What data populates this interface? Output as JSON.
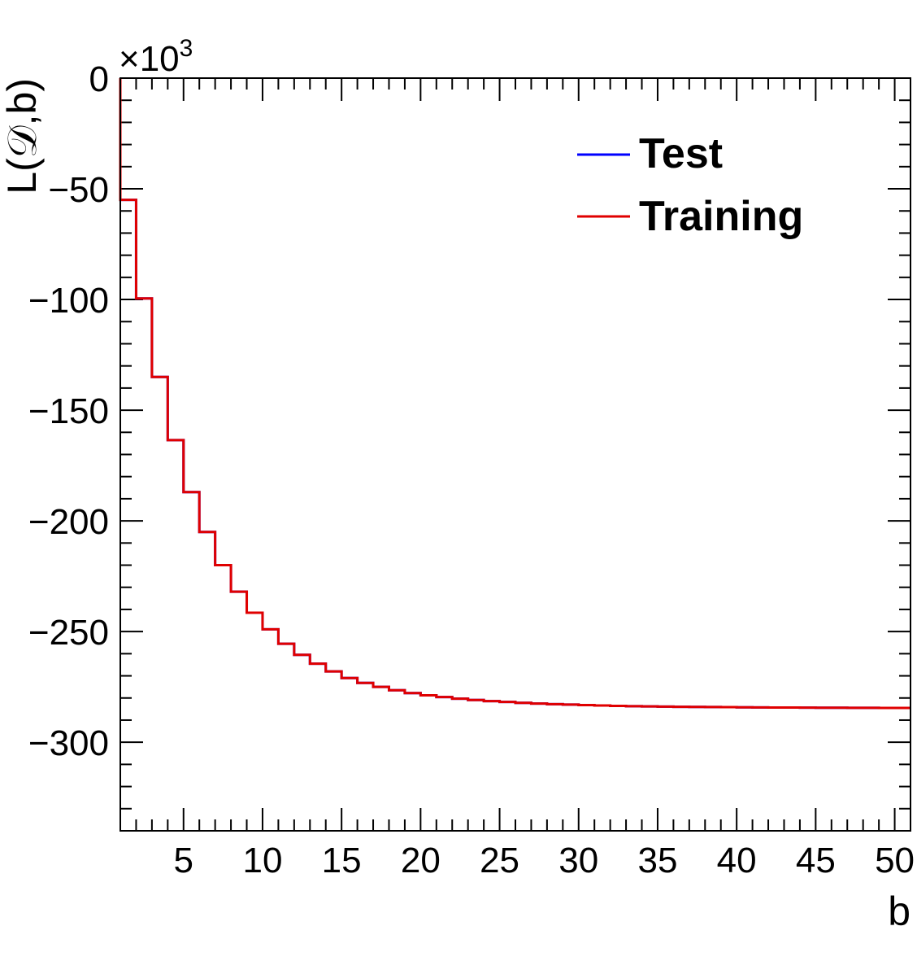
{
  "chart_data": {
    "type": "line",
    "step": true,
    "xlabel": "b",
    "ylabel": "L(𝒟,b)",
    "y_multiplier": "×10",
    "y_multiplier_exp": "3",
    "xlim": [
      1,
      51
    ],
    "ylim": [
      -340,
      0
    ],
    "x_ticks": [
      5,
      10,
      15,
      20,
      25,
      30,
      35,
      40,
      45,
      50
    ],
    "y_ticks": [
      0,
      -50,
      -100,
      -150,
      -200,
      -250,
      -300
    ],
    "y_tick_labels": [
      "0",
      "−50",
      "−100",
      "−150",
      "−200",
      "−250",
      "−300"
    ],
    "legend_position": "top-right",
    "x": [
      2,
      3,
      4,
      5,
      6,
      7,
      8,
      9,
      10,
      11,
      12,
      13,
      14,
      15,
      16,
      17,
      18,
      19,
      20,
      21,
      22,
      23,
      24,
      25,
      26,
      27,
      28,
      29,
      30,
      31,
      32,
      33,
      34,
      35,
      36,
      37,
      38,
      39,
      40,
      41,
      42,
      43,
      44,
      45,
      46,
      47,
      48,
      49,
      50
    ],
    "series": [
      {
        "name": "Test",
        "color": "#0000ff",
        "values": [
          -55,
          -99.5,
          -135,
          -163.5,
          -187,
          -205,
          -220,
          -232,
          -241.5,
          -249,
          -255.5,
          -260.5,
          -264.5,
          -268,
          -271,
          -273.2,
          -275,
          -276.5,
          -277.8,
          -278.8,
          -279.6,
          -280.3,
          -280.9,
          -281.4,
          -281.8,
          -282.2,
          -282.5,
          -282.8,
          -283.0,
          -283.2,
          -283.4,
          -283.6,
          -283.7,
          -283.8,
          -283.9,
          -284.0,
          -284.05,
          -284.1,
          -284.15,
          -284.2,
          -284.25,
          -284.3,
          -284.33,
          -284.36,
          -284.39,
          -284.42,
          -284.44,
          -284.46,
          -284.48
        ]
      },
      {
        "name": "Training",
        "color": "#e00000",
        "values": [
          -55,
          -99.5,
          -135,
          -163.5,
          -187,
          -205,
          -220,
          -232,
          -241.5,
          -249,
          -255.5,
          -260.5,
          -264.5,
          -268,
          -271,
          -273.2,
          -275,
          -276.5,
          -277.8,
          -278.8,
          -279.6,
          -280.3,
          -280.9,
          -281.4,
          -281.8,
          -282.2,
          -282.5,
          -282.8,
          -283.0,
          -283.2,
          -283.4,
          -283.6,
          -283.7,
          -283.8,
          -283.9,
          -284.0,
          -284.05,
          -284.1,
          -284.15,
          -284.2,
          -284.25,
          -284.3,
          -284.33,
          -284.36,
          -284.39,
          -284.42,
          -284.44,
          -284.46,
          -284.48
        ]
      }
    ]
  }
}
